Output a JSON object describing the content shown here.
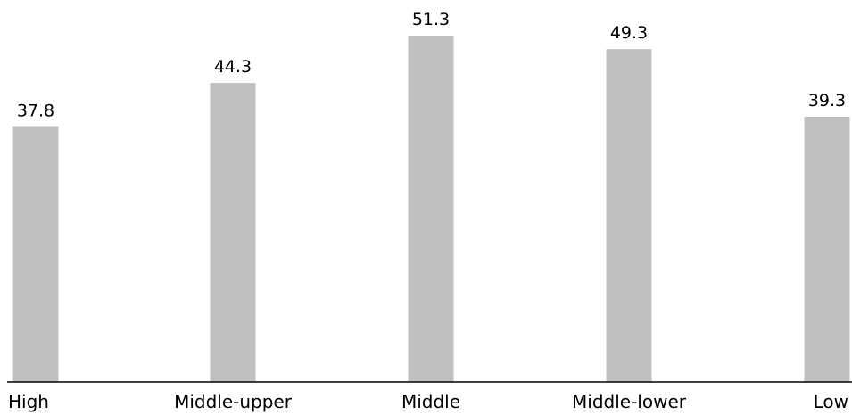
{
  "chart_data": {
    "type": "bar",
    "categories": [
      "High",
      "Middle-upper",
      "Middle",
      "Middle-lower",
      "Low"
    ],
    "values": [
      37.8,
      44.3,
      51.3,
      49.3,
      39.3
    ],
    "value_labels": [
      "37.8",
      "44.3",
      "51.3",
      "49.3",
      "39.3"
    ],
    "title": "",
    "xlabel": "",
    "ylabel": "",
    "ylim": [
      0,
      51.3
    ],
    "grid": false,
    "legend": "none",
    "colors": {
      "bar": "#c0c0c0",
      "axis": "#000000",
      "text": "#000000"
    }
  }
}
